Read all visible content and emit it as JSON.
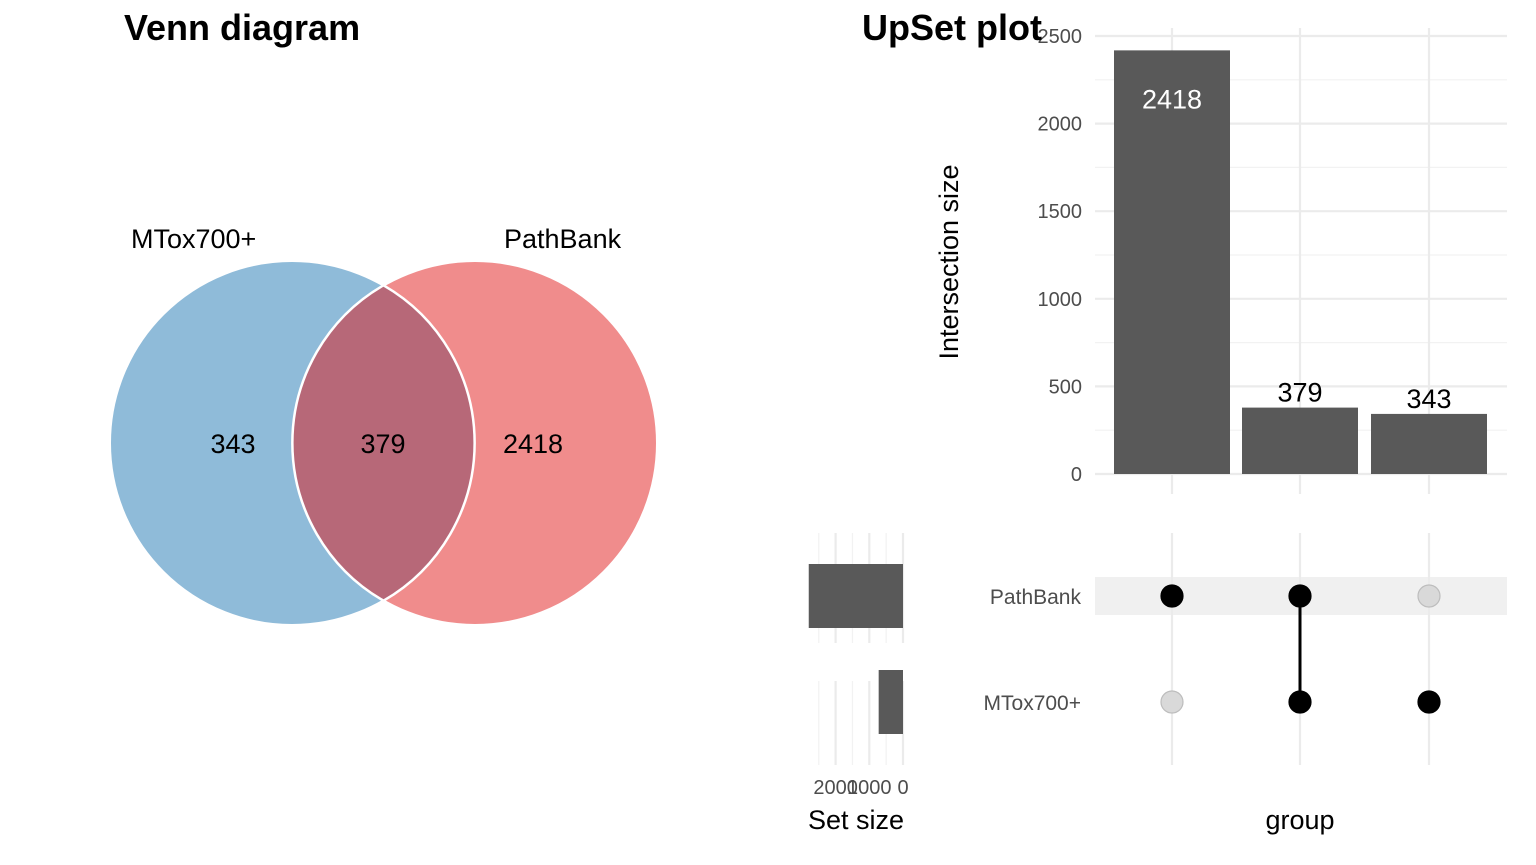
{
  "chart_data": [
    {
      "type": "venn",
      "title": "Venn diagram",
      "sets": [
        {
          "name": "MTox700+",
          "color": "#8fbbd9"
        },
        {
          "name": "PathBank",
          "color": "#f08c8c"
        }
      ],
      "intersection_color": "#b76878",
      "regions": [
        {
          "sets": [
            "MTox700+"
          ],
          "count": "343"
        },
        {
          "sets": [
            "MTox700+",
            "PathBank"
          ],
          "count": "379"
        },
        {
          "sets": [
            "PathBank"
          ],
          "count": "2418"
        }
      ]
    },
    {
      "type": "bar",
      "title": "UpSet plot",
      "ylabel": "Intersection size",
      "xlabel": "group",
      "ylim": [
        0,
        2500
      ],
      "yticks": [
        "0",
        "500",
        "1000",
        "1500",
        "2000",
        "2500"
      ],
      "categories": [
        "PathBank only",
        "PathBank & MTox700+",
        "MTox700+ only"
      ],
      "values": [
        2418,
        379,
        343
      ],
      "bar_labels": [
        "2418",
        "379",
        "343"
      ],
      "bar_color": "#595959",
      "matrix": {
        "rows": [
          "PathBank",
          "MTox700+"
        ],
        "membership": [
          [
            true,
            false
          ],
          [
            true,
            true
          ],
          [
            false,
            true
          ]
        ]
      },
      "set_size": {
        "xlabel": "Set size",
        "xticks": [
          "2000",
          "1000",
          "0"
        ],
        "values": [
          2797,
          722
        ]
      }
    }
  ]
}
